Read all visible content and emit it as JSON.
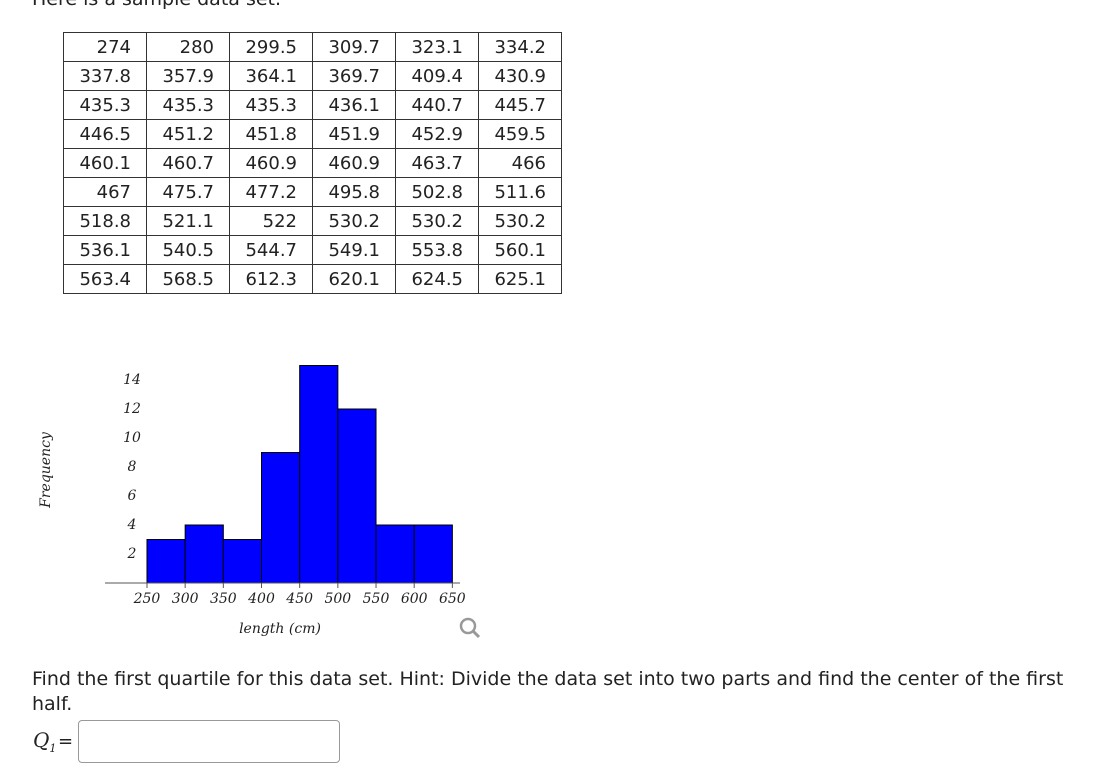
{
  "header": {
    "text": "Here is a sample data set."
  },
  "table": {
    "rows": [
      [
        274,
        280,
        299.5,
        309.7,
        323.1,
        334.2
      ],
      [
        337.8,
        357.9,
        364.1,
        369.7,
        409.4,
        430.9
      ],
      [
        435.3,
        435.3,
        435.3,
        436.1,
        440.7,
        445.7
      ],
      [
        446.5,
        451.2,
        451.8,
        451.9,
        452.9,
        459.5
      ],
      [
        460.1,
        460.7,
        460.9,
        460.9,
        463.7,
        466
      ],
      [
        467,
        475.7,
        477.2,
        495.8,
        502.8,
        511.6
      ],
      [
        518.8,
        521.1,
        522,
        530.2,
        530.2,
        530.2
      ],
      [
        536.1,
        540.5,
        544.7,
        549.1,
        553.8,
        560.1
      ],
      [
        563.4,
        568.5,
        612.3,
        620.1,
        624.5,
        625.1
      ]
    ]
  },
  "chart_data": {
    "type": "histogram",
    "x_label": "length (cm)",
    "y_label": "Frequency",
    "bins": [
      250,
      300,
      350,
      400,
      450,
      500,
      550,
      600,
      650
    ],
    "values": [
      3,
      4,
      3,
      9,
      15,
      12,
      4,
      4
    ],
    "color": "#0000ff",
    "xlim": [
      195,
      660
    ],
    "ylim": [
      0,
      15
    ],
    "xticks": [
      250,
      300,
      350,
      400,
      450,
      500,
      550,
      600,
      650
    ],
    "yticks": [
      2,
      4,
      6,
      8,
      10,
      12,
      14
    ]
  },
  "question": {
    "text": "Find the first quartile for this data set. Hint: Divide the data set into two parts and find the center of the first half.",
    "answer_label": "Q",
    "answer_subscript": "1",
    "equals": "="
  }
}
